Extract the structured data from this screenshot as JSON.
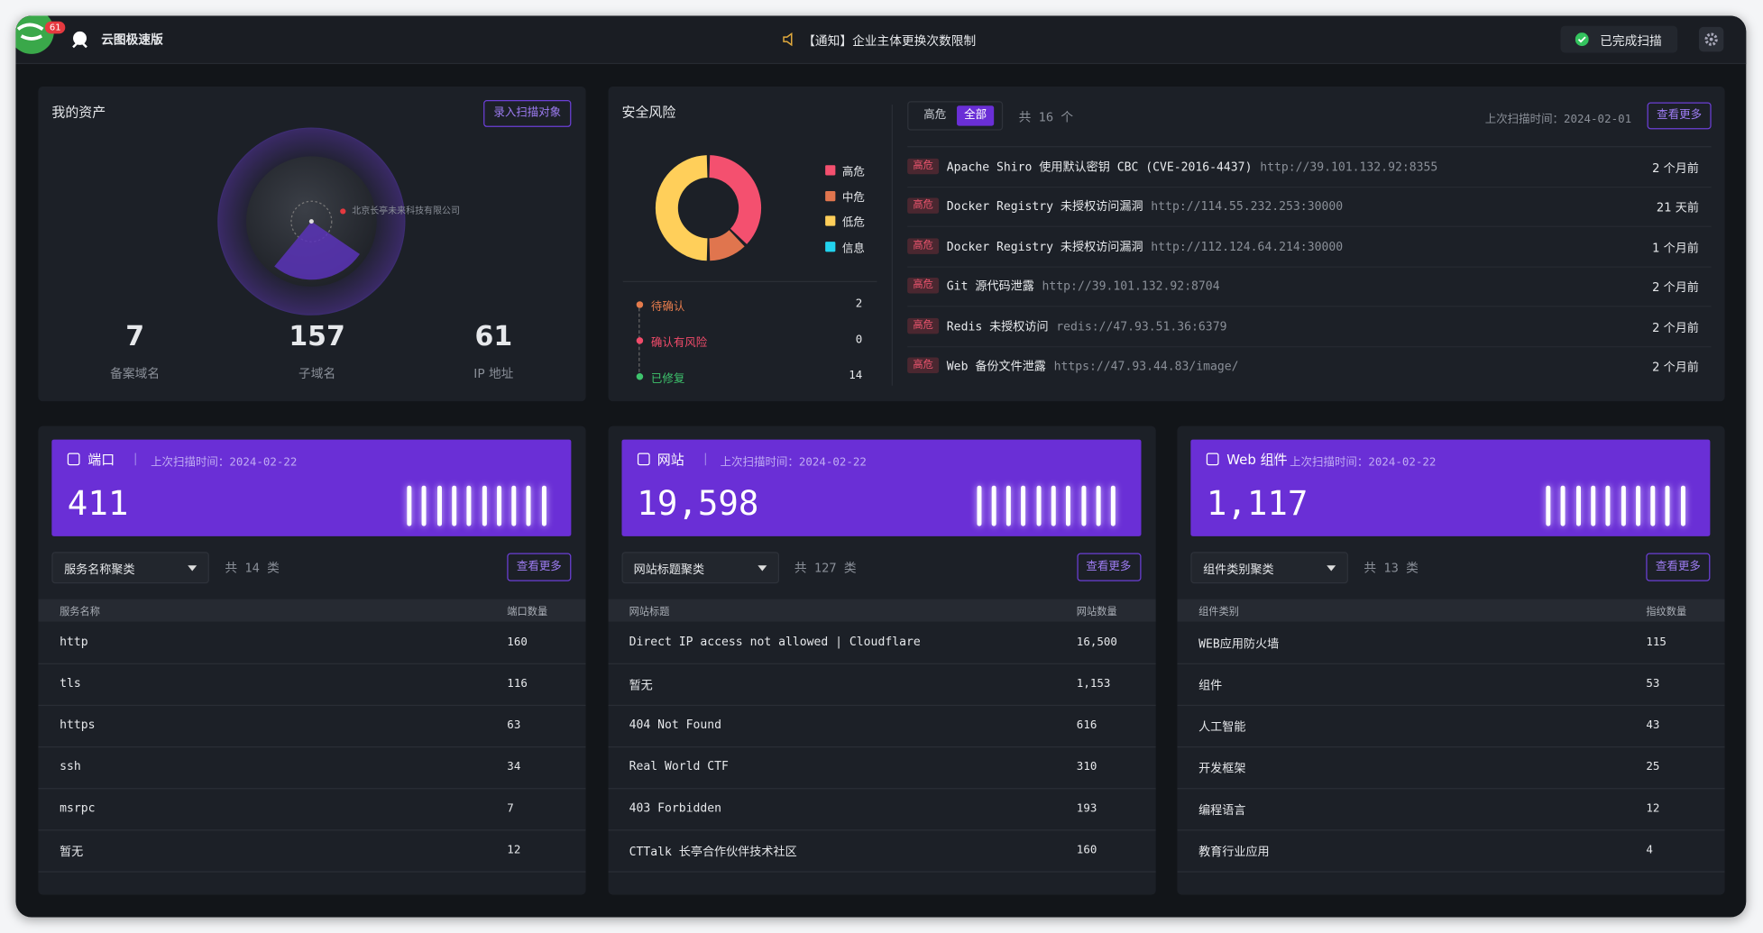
{
  "header": {
    "badge": "61",
    "app_name": "云图极速版",
    "notice": "【通知】企业主体更换次数限制",
    "scan_status": "已完成扫描"
  },
  "assets": {
    "title": "我的资产",
    "button": "录入扫描对象",
    "radar_label": "北京长亭未来科技有限公司",
    "stats": [
      {
        "value": "7",
        "label": "备案域名"
      },
      {
        "value": "157",
        "label": "子域名"
      },
      {
        "value": "61",
        "label": "IP 地址"
      }
    ]
  },
  "risk": {
    "title": "安全风险",
    "legend": [
      {
        "name": "高危",
        "color": "#f4506f",
        "value": 6
      },
      {
        "name": "中危",
        "color": "#e0754e",
        "value": 2
      },
      {
        "name": "低危",
        "color": "#ffcf5a",
        "value": 8
      },
      {
        "name": "信息",
        "color": "#22d3ee",
        "value": 0
      }
    ],
    "status": [
      {
        "label": "待确认",
        "count": "2",
        "color": "#e47b4c"
      },
      {
        "label": "确认有风险",
        "count": "0",
        "color": "#f04b6a"
      },
      {
        "label": "已修复",
        "count": "14",
        "color": "#3ec46d"
      }
    ],
    "tabs": [
      "高危",
      "全部"
    ],
    "total": "共 16 个",
    "last_scan": "上次扫描时间：2024-02-01",
    "button": "查看更多",
    "items": [
      {
        "level": "高危",
        "title": "Apache Shiro 使用默认密钥 CBC (CVE-2016-4437)",
        "url": "http://39.101.132.92:8355",
        "time": "2 个月前"
      },
      {
        "level": "高危",
        "title": "Docker Registry 未授权访问漏洞",
        "url": "http://114.55.232.253:30000",
        "time": "21 天前"
      },
      {
        "level": "高危",
        "title": "Docker Registry 未授权访问漏洞",
        "url": "http://112.124.64.214:30000",
        "time": "1 个月前"
      },
      {
        "level": "高危",
        "title": "Git 源代码泄露",
        "url": "http://39.101.132.92:8704",
        "time": "2 个月前"
      },
      {
        "level": "高危",
        "title": "Redis 未授权访问",
        "url": "redis://47.93.51.36:6379",
        "time": "2 个月前"
      },
      {
        "level": "高危",
        "title": "Web 备份文件泄露",
        "url": "https://47.93.44.83/image/",
        "time": "2 个月前"
      }
    ]
  },
  "cards": [
    {
      "title": "端口",
      "scan_time": "上次扫描时间：2024-02-22",
      "count": "411",
      "filter": "服务名称聚类",
      "total": "共 14 类",
      "button": "查看更多",
      "columns": [
        "服务名称",
        "端口数量"
      ],
      "rows": [
        [
          "http",
          "160"
        ],
        [
          "tls",
          "116"
        ],
        [
          "https",
          "63"
        ],
        [
          "ssh",
          "34"
        ],
        [
          "msrpc",
          "7"
        ],
        [
          "暂无",
          "12"
        ]
      ]
    },
    {
      "title": "网站",
      "scan_time": "上次扫描时间：2024-02-22",
      "count": "19,598",
      "filter": "网站标题聚类",
      "total": "共 127 类",
      "button": "查看更多",
      "columns": [
        "网站标题",
        "网站数量"
      ],
      "rows": [
        [
          "Direct IP access not allowed | Cloudflare",
          "16,500"
        ],
        [
          "暂无",
          "1,153"
        ],
        [
          "404 Not Found",
          "616"
        ],
        [
          "Real World CTF",
          "310"
        ],
        [
          "403 Forbidden",
          "193"
        ],
        [
          "CTTalk 长亭合作伙伴技术社区",
          "160"
        ]
      ]
    },
    {
      "title": "Web 组件",
      "scan_time": "上次扫描时间：2024-02-22",
      "count": "1,117",
      "filter": "组件类别聚类",
      "total": "共 13 类",
      "button": "查看更多",
      "columns": [
        "组件类别",
        "指纹数量"
      ],
      "rows": [
        [
          "WEB应用防火墙",
          "115"
        ],
        [
          "组件",
          "53"
        ],
        [
          "人工智能",
          "43"
        ],
        [
          "开发框架",
          "25"
        ],
        [
          "编程语言",
          "12"
        ],
        [
          "教育行业应用",
          "4"
        ]
      ]
    }
  ]
}
